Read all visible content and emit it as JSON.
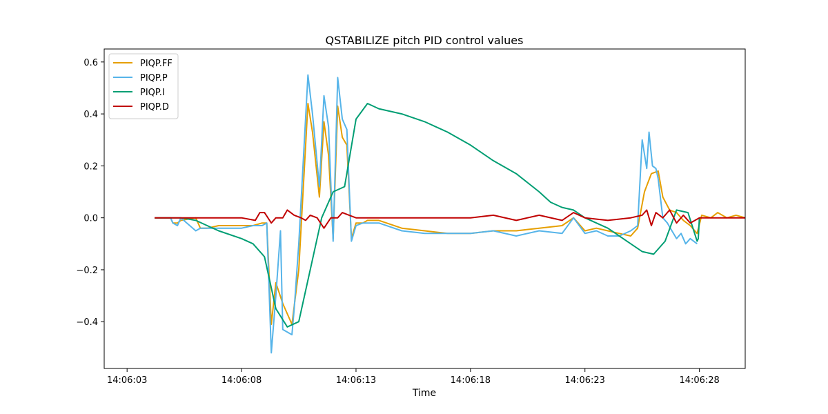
{
  "chart_data": {
    "type": "line",
    "title": "QSTABILIZE pitch PID control values",
    "xlabel": "Time",
    "ylabel": "",
    "x_unit": "seconds after 14:06:03",
    "xlim": [
      -1.0,
      27.0
    ],
    "ylim": [
      -0.58,
      0.65
    ],
    "x_ticks": [
      {
        "value": 0,
        "label": "14:06:03"
      },
      {
        "value": 5,
        "label": "14:06:08"
      },
      {
        "value": 10,
        "label": "14:06:13"
      },
      {
        "value": 15,
        "label": "14:06:18"
      },
      {
        "value": 20,
        "label": "14:06:23"
      },
      {
        "value": 25,
        "label": "14:06:28"
      }
    ],
    "y_ticks": [
      {
        "value": 0.6,
        "label": "0.6"
      },
      {
        "value": 0.4,
        "label": "0.4"
      },
      {
        "value": 0.2,
        "label": "0.2"
      },
      {
        "value": 0.0,
        "label": "0.0"
      },
      {
        "value": -0.2,
        "label": "−0.2"
      },
      {
        "value": -0.4,
        "label": "−0.4"
      }
    ],
    "grid": false,
    "legend_position": "top-left",
    "series": [
      {
        "name": "PIQP.FF",
        "color": "#E69F00",
        "x": [
          1.2,
          1.9,
          2.0,
          2.2,
          2.35,
          3.0,
          3.2,
          3.5,
          4.0,
          4.5,
          5.0,
          5.5,
          5.9,
          6.1,
          6.3,
          6.5,
          6.8,
          7.2,
          7.5,
          7.9,
          8.1,
          8.4,
          8.6,
          8.8,
          9.0,
          9.2,
          9.4,
          9.6,
          9.8,
          10.0,
          10.3,
          10.5,
          11.0,
          12.0,
          13.0,
          14.0,
          15.0,
          16.0,
          17.0,
          18.0,
          19.0,
          19.5,
          20.0,
          20.5,
          21.0,
          21.5,
          22.0,
          22.3,
          22.6,
          22.9,
          23.2,
          23.4,
          23.7,
          24.0,
          24.3,
          24.6,
          24.9,
          25.1,
          25.5,
          25.8,
          26.2,
          26.6,
          27.0
        ],
        "y": [
          0.0,
          0.0,
          -0.02,
          -0.02,
          -0.01,
          0.0,
          -0.04,
          -0.04,
          -0.03,
          -0.03,
          -0.03,
          -0.03,
          -0.02,
          -0.02,
          -0.41,
          -0.25,
          -0.33,
          -0.41,
          -0.2,
          0.44,
          0.33,
          0.08,
          0.37,
          0.24,
          -0.08,
          0.43,
          0.31,
          0.28,
          -0.08,
          -0.02,
          -0.02,
          -0.01,
          -0.01,
          -0.04,
          -0.05,
          -0.06,
          -0.06,
          -0.05,
          -0.05,
          -0.04,
          -0.03,
          0.0,
          -0.05,
          -0.04,
          -0.05,
          -0.06,
          -0.07,
          -0.04,
          0.1,
          0.17,
          0.18,
          0.08,
          0.03,
          0.02,
          -0.01,
          -0.03,
          -0.06,
          0.01,
          0.0,
          0.02,
          0.0,
          0.01,
          0.0
        ]
      },
      {
        "name": "PIQP.P",
        "color": "#56B4E9",
        "x": [
          1.2,
          1.9,
          2.0,
          2.2,
          2.35,
          3.0,
          3.2,
          3.5,
          4.0,
          4.5,
          5.0,
          5.5,
          5.9,
          6.1,
          6.3,
          6.5,
          6.7,
          6.8,
          7.2,
          7.3,
          7.5,
          7.9,
          8.1,
          8.4,
          8.6,
          8.8,
          9.0,
          9.2,
          9.4,
          9.6,
          9.8,
          10.0,
          10.3,
          10.5,
          11.0,
          12.0,
          13.0,
          14.0,
          15.0,
          16.0,
          17.0,
          18.0,
          19.0,
          19.5,
          20.0,
          20.5,
          21.0,
          21.5,
          22.0,
          22.3,
          22.5,
          22.7,
          22.8,
          22.95,
          23.1,
          23.2,
          23.4,
          23.6,
          23.8,
          24.0,
          24.2,
          24.4,
          24.6,
          24.9
        ],
        "y": [
          0.0,
          0.0,
          -0.02,
          -0.03,
          0.0,
          -0.05,
          -0.04,
          -0.04,
          -0.04,
          -0.04,
          -0.04,
          -0.03,
          -0.03,
          -0.02,
          -0.52,
          -0.3,
          -0.05,
          -0.43,
          -0.45,
          -0.35,
          -0.1,
          0.55,
          0.4,
          0.12,
          0.47,
          0.35,
          -0.09,
          0.54,
          0.38,
          0.34,
          -0.09,
          -0.03,
          -0.02,
          -0.02,
          -0.02,
          -0.05,
          -0.06,
          -0.06,
          -0.06,
          -0.05,
          -0.07,
          -0.05,
          -0.06,
          0.0,
          -0.06,
          -0.05,
          -0.07,
          -0.07,
          -0.05,
          -0.03,
          0.3,
          0.19,
          0.33,
          0.2,
          0.19,
          0.15,
          0.0,
          -0.02,
          -0.05,
          -0.08,
          -0.06,
          -0.1,
          -0.08,
          -0.1
        ]
      },
      {
        "name": "PIQP.I",
        "color": "#009E73",
        "x": [
          1.2,
          2.35,
          3.0,
          3.5,
          4.0,
          5.0,
          5.5,
          6.0,
          6.5,
          7.0,
          7.5,
          8.0,
          8.5,
          9.0,
          9.5,
          10.0,
          10.5,
          11.0,
          12.0,
          13.0,
          14.0,
          15.0,
          16.0,
          17.0,
          18.0,
          18.5,
          19.0,
          19.5,
          20.0,
          20.5,
          21.0,
          21.5,
          22.0,
          22.5,
          23.0,
          23.5,
          24.0,
          24.5,
          24.9,
          24.95,
          25.0
        ],
        "y": [
          0.0,
          0.0,
          -0.01,
          -0.03,
          -0.05,
          -0.08,
          -0.1,
          -0.15,
          -0.35,
          -0.42,
          -0.4,
          -0.2,
          0.0,
          0.1,
          0.12,
          0.38,
          0.44,
          0.42,
          0.4,
          0.37,
          0.33,
          0.28,
          0.22,
          0.17,
          0.1,
          0.06,
          0.04,
          0.03,
          0.0,
          -0.02,
          -0.04,
          -0.07,
          -0.1,
          -0.13,
          -0.14,
          -0.09,
          0.03,
          0.02,
          -0.09,
          -0.08,
          0.0
        ]
      },
      {
        "name": "PIQP.D",
        "color": "#C00000",
        "x": [
          1.2,
          2.0,
          3.0,
          3.5,
          4.0,
          5.0,
          5.6,
          5.8,
          6.0,
          6.3,
          6.5,
          6.8,
          7.0,
          7.3,
          7.6,
          7.8,
          8.0,
          8.3,
          8.6,
          8.9,
          9.2,
          9.4,
          9.7,
          10.0,
          10.5,
          12.0,
          15.0,
          16.0,
          17.0,
          18.0,
          19.0,
          19.5,
          20.0,
          21.0,
          22.0,
          22.5,
          22.7,
          22.9,
          23.1,
          23.4,
          23.7,
          24.0,
          24.3,
          24.6,
          25.0,
          27.0
        ],
        "y": [
          0.0,
          0.0,
          0.0,
          0.0,
          0.0,
          0.0,
          -0.01,
          0.02,
          0.02,
          -0.02,
          0.0,
          0.0,
          0.03,
          0.01,
          0.0,
          -0.01,
          0.01,
          0.0,
          -0.04,
          0.0,
          0.0,
          0.02,
          0.01,
          0.0,
          0.0,
          0.0,
          0.0,
          0.01,
          -0.01,
          0.01,
          -0.01,
          0.02,
          0.0,
          -0.01,
          0.0,
          0.01,
          0.03,
          -0.03,
          0.02,
          0.0,
          0.03,
          -0.02,
          0.01,
          -0.02,
          0.0,
          0.0
        ]
      }
    ]
  }
}
